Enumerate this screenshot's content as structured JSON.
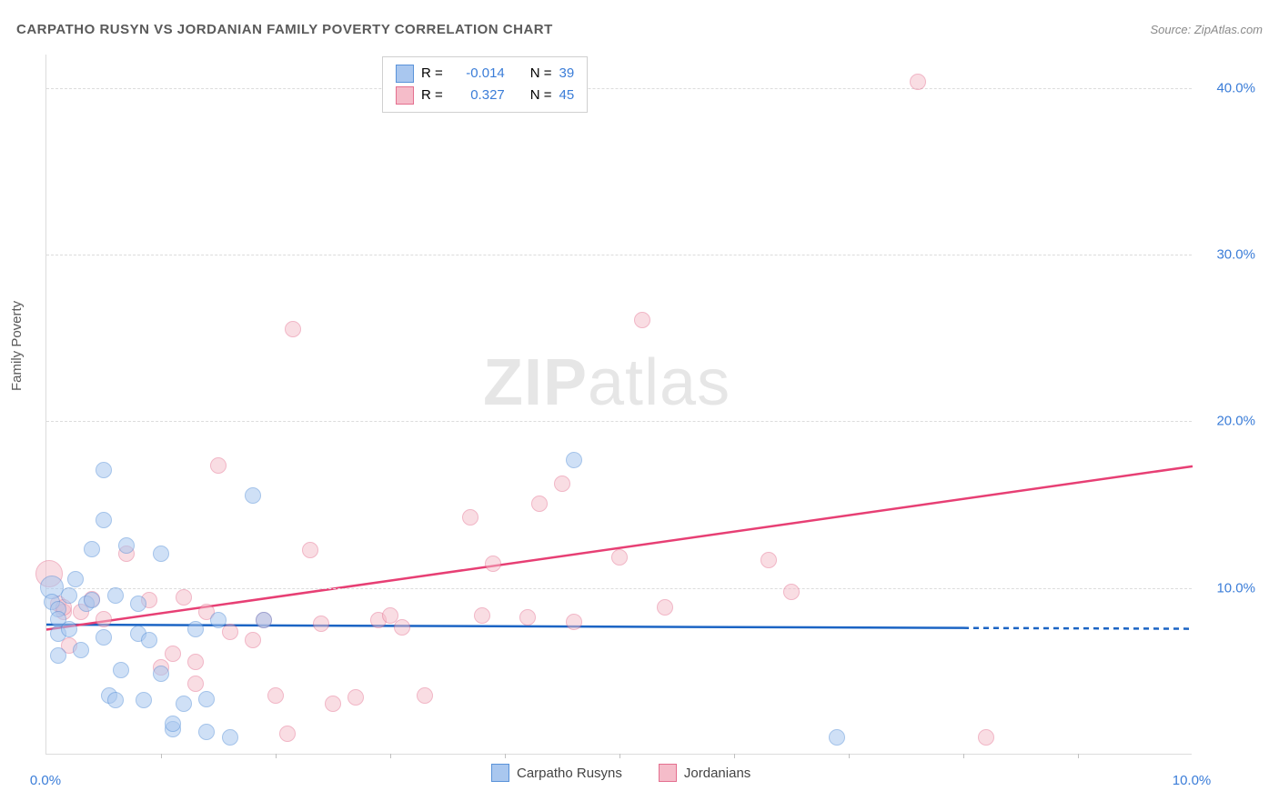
{
  "header": {
    "title": "CARPATHO RUSYN VS JORDANIAN FAMILY POVERTY CORRELATION CHART",
    "source": "Source: ZipAtlas.com"
  },
  "chart": {
    "type": "scatter",
    "ylabel": "Family Poverty",
    "watermark_zip": "ZIP",
    "watermark_atlas": "atlas",
    "background_color": "#ffffff",
    "grid_color": "#dcdcdc",
    "axis_label_color": "#3b7dd8",
    "xlim": [
      0,
      10
    ],
    "ylim": [
      0,
      42
    ],
    "y_ticks": [
      {
        "value": 10.0,
        "label": "10.0%"
      },
      {
        "value": 20.0,
        "label": "20.0%"
      },
      {
        "value": 30.0,
        "label": "30.0%"
      },
      {
        "value": 40.0,
        "label": "40.0%"
      }
    ],
    "x_ticks_minor": [
      1,
      2,
      3,
      4,
      5,
      6,
      7,
      8,
      9
    ],
    "x_labels": [
      {
        "value": 0.0,
        "label": "0.0%"
      },
      {
        "value": 10.0,
        "label": "10.0%"
      }
    ],
    "series": {
      "carpatho": {
        "label": "Carpatho Rusyns",
        "fill_color": "#a9c7ef",
        "stroke_color": "#5a93d9",
        "line_color": "#1b64c4",
        "fill_opacity": 0.55,
        "marker_radius": 9,
        "regression": {
          "x1": 0.0,
          "y1": 7.8,
          "x2": 8.0,
          "y2": 7.6,
          "x_dash_end": 10.0,
          "y_dash_end": 7.55
        },
        "R": "-0.014",
        "N": "39",
        "points": [
          {
            "x": 0.05,
            "y": 10.0,
            "r": 13
          },
          {
            "x": 0.05,
            "y": 9.1
          },
          {
            "x": 0.1,
            "y": 8.7
          },
          {
            "x": 0.1,
            "y": 8.1
          },
          {
            "x": 0.1,
            "y": 7.2
          },
          {
            "x": 0.1,
            "y": 5.9
          },
          {
            "x": 0.2,
            "y": 9.5
          },
          {
            "x": 0.2,
            "y": 7.5
          },
          {
            "x": 0.25,
            "y": 10.5
          },
          {
            "x": 0.3,
            "y": 6.2
          },
          {
            "x": 0.35,
            "y": 9.0
          },
          {
            "x": 0.4,
            "y": 12.3
          },
          {
            "x": 0.4,
            "y": 9.2
          },
          {
            "x": 0.5,
            "y": 14.0
          },
          {
            "x": 0.5,
            "y": 17.0
          },
          {
            "x": 0.5,
            "y": 7.0
          },
          {
            "x": 0.55,
            "y": 3.5
          },
          {
            "x": 0.6,
            "y": 3.2
          },
          {
            "x": 0.6,
            "y": 9.5
          },
          {
            "x": 0.65,
            "y": 5.0
          },
          {
            "x": 0.7,
            "y": 12.5
          },
          {
            "x": 0.8,
            "y": 9.0
          },
          {
            "x": 0.8,
            "y": 7.2
          },
          {
            "x": 0.85,
            "y": 3.2
          },
          {
            "x": 0.9,
            "y": 6.8
          },
          {
            "x": 1.0,
            "y": 4.8
          },
          {
            "x": 1.0,
            "y": 12.0
          },
          {
            "x": 1.1,
            "y": 1.5
          },
          {
            "x": 1.1,
            "y": 1.8
          },
          {
            "x": 1.2,
            "y": 3.0
          },
          {
            "x": 1.3,
            "y": 7.5
          },
          {
            "x": 1.4,
            "y": 1.3
          },
          {
            "x": 1.4,
            "y": 3.3
          },
          {
            "x": 1.5,
            "y": 8.0
          },
          {
            "x": 1.6,
            "y": 1.0
          },
          {
            "x": 1.8,
            "y": 15.5
          },
          {
            "x": 1.9,
            "y": 8.0
          },
          {
            "x": 4.6,
            "y": 17.6
          },
          {
            "x": 6.9,
            "y": 1.0
          }
        ]
      },
      "jordanian": {
        "label": "Jordanians",
        "fill_color": "#f5bcc9",
        "stroke_color": "#e46f8f",
        "line_color": "#e73f74",
        "fill_opacity": 0.5,
        "marker_radius": 9,
        "regression": {
          "x1": 0.0,
          "y1": 7.5,
          "x2": 10.0,
          "y2": 17.3
        },
        "R": "0.327",
        "N": "45",
        "points": [
          {
            "x": 0.02,
            "y": 10.8,
            "r": 15
          },
          {
            "x": 0.1,
            "y": 9.0
          },
          {
            "x": 0.15,
            "y": 8.5
          },
          {
            "x": 0.15,
            "y": 8.8
          },
          {
            "x": 0.2,
            "y": 6.5
          },
          {
            "x": 0.3,
            "y": 8.5
          },
          {
            "x": 0.4,
            "y": 9.3
          },
          {
            "x": 0.5,
            "y": 8.1
          },
          {
            "x": 0.7,
            "y": 12.0
          },
          {
            "x": 0.9,
            "y": 9.2
          },
          {
            "x": 1.0,
            "y": 5.2
          },
          {
            "x": 1.1,
            "y": 6.0
          },
          {
            "x": 1.2,
            "y": 9.4
          },
          {
            "x": 1.3,
            "y": 4.2
          },
          {
            "x": 1.3,
            "y": 5.5
          },
          {
            "x": 1.4,
            "y": 8.5
          },
          {
            "x": 1.5,
            "y": 17.3
          },
          {
            "x": 1.6,
            "y": 7.3
          },
          {
            "x": 1.8,
            "y": 6.8
          },
          {
            "x": 1.9,
            "y": 8.0
          },
          {
            "x": 2.0,
            "y": 3.5
          },
          {
            "x": 2.1,
            "y": 1.2
          },
          {
            "x": 2.15,
            "y": 25.5
          },
          {
            "x": 2.3,
            "y": 12.2
          },
          {
            "x": 2.4,
            "y": 7.8
          },
          {
            "x": 2.5,
            "y": 3.0
          },
          {
            "x": 2.7,
            "y": 3.4
          },
          {
            "x": 2.9,
            "y": 8.0
          },
          {
            "x": 3.0,
            "y": 8.3
          },
          {
            "x": 3.1,
            "y": 7.6
          },
          {
            "x": 3.3,
            "y": 3.5
          },
          {
            "x": 3.7,
            "y": 14.2
          },
          {
            "x": 3.8,
            "y": 8.3
          },
          {
            "x": 3.9,
            "y": 11.4
          },
          {
            "x": 4.2,
            "y": 8.2
          },
          {
            "x": 4.3,
            "y": 15.0
          },
          {
            "x": 4.5,
            "y": 16.2
          },
          {
            "x": 4.6,
            "y": 7.9
          },
          {
            "x": 5.0,
            "y": 11.8
          },
          {
            "x": 5.2,
            "y": 26.0
          },
          {
            "x": 5.4,
            "y": 8.8
          },
          {
            "x": 6.3,
            "y": 11.6
          },
          {
            "x": 6.5,
            "y": 9.7
          },
          {
            "x": 7.6,
            "y": 40.3
          },
          {
            "x": 8.2,
            "y": 1.0
          }
        ]
      }
    }
  },
  "stats_box": {
    "R_label": "R =",
    "N_label": "N ="
  },
  "legend": {
    "series1": "Carpatho Rusyns",
    "series2": "Jordanians"
  }
}
